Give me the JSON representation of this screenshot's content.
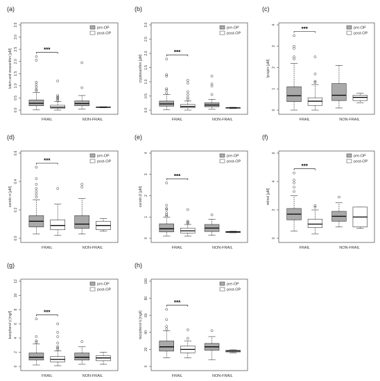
{
  "legend": {
    "pre_label": "pre-OP",
    "post_label": "post-OP"
  },
  "colors": {
    "pre_fill": "#a9a9a9",
    "post_fill": "#ffffff",
    "stroke": "#333333"
  },
  "chart_data": [
    {
      "panel": "(a)",
      "type": "boxplot",
      "ylabel": "lutein and zeaxanthin [µM]",
      "ylim": [
        0,
        3.5
      ],
      "yticks": [
        "0.0",
        "0.5",
        "1.0",
        "1.5",
        "2.0",
        "2.5",
        "3.0",
        "3.5"
      ],
      "categories": [
        "FRAIL",
        "NON-FRAIL"
      ],
      "significance": "***",
      "series": [
        {
          "name": "pre-OP",
          "boxes": [
            {
              "whisker_low": 0.02,
              "q1": 0.18,
              "median": 0.28,
              "q3": 0.42,
              "whisker_high": 0.72,
              "outliers": [
                0.8,
                0.85,
                0.95,
                1.05,
                1.15,
                2.05,
                2.2
              ]
            },
            {
              "whisker_low": 0.05,
              "q1": 0.18,
              "median": 0.27,
              "q3": 0.38,
              "whisker_high": 0.6,
              "outliers": [
                0.92,
                1.95
              ]
            }
          ]
        },
        {
          "name": "post-OP",
          "boxes": [
            {
              "whisker_low": 0.0,
              "q1": 0.08,
              "median": 0.12,
              "q3": 0.2,
              "whisker_high": 0.35,
              "outliers": [
                0.4,
                0.45,
                0.5,
                0.55,
                0.6,
                1.2
              ]
            },
            {
              "whisker_low": 0.1,
              "q1": 0.11,
              "median": 0.12,
              "q3": 0.13,
              "whisker_high": 0.14,
              "outliers": []
            }
          ]
        }
      ]
    },
    {
      "panel": "(b)",
      "type": "boxplot",
      "ylabel": "cryptoxanthin [µM]",
      "ylim": [
        0,
        3.0
      ],
      "yticks": [
        "0.0",
        "0.5",
        "1.0",
        "1.5",
        "2.0",
        "2.5",
        "3.0"
      ],
      "categories": [
        "FRAIL",
        "NON-FRAIL"
      ],
      "significance": "***",
      "series": [
        {
          "name": "pre-OP",
          "boxes": [
            {
              "whisker_low": 0.02,
              "q1": 0.14,
              "median": 0.22,
              "q3": 0.32,
              "whisker_high": 0.55,
              "outliers": [
                0.6,
                0.7,
                0.75,
                1.2,
                1.25,
                1.8
              ]
            },
            {
              "whisker_low": 0.03,
              "q1": 0.12,
              "median": 0.18,
              "q3": 0.26,
              "whisker_high": 0.38,
              "outliers": [
                0.55,
                0.85,
                0.92,
                1.2
              ]
            }
          ]
        },
        {
          "name": "post-OP",
          "boxes": [
            {
              "whisker_low": 0.0,
              "q1": 0.08,
              "median": 0.13,
              "q3": 0.2,
              "whisker_high": 0.32,
              "outliers": [
                0.38,
                0.45,
                0.55,
                0.65,
                0.95,
                1.05
              ]
            },
            {
              "whisker_low": 0.06,
              "q1": 0.07,
              "median": 0.08,
              "q3": 0.09,
              "whisker_high": 0.1,
              "outliers": []
            }
          ]
        }
      ]
    },
    {
      "panel": "(c)",
      "type": "boxplot",
      "ylabel": "lycopin [µM]",
      "ylim": [
        0,
        4
      ],
      "yticks": [
        "0",
        "1",
        "2",
        "3",
        "4"
      ],
      "categories": [
        "FRAIL",
        "NON-FRAIL"
      ],
      "significance": "***",
      "series": [
        {
          "name": "pre-OP",
          "boxes": [
            {
              "whisker_low": 0.0,
              "q1": 0.4,
              "median": 0.68,
              "q3": 1.1,
              "whisker_high": 2.2,
              "outliers": [
                2.4,
                2.5,
                2.9,
                3.0,
                3.5
              ]
            },
            {
              "whisker_low": 0.1,
              "q1": 0.45,
              "median": 0.7,
              "q3": 1.25,
              "whisker_high": 2.1,
              "outliers": []
            }
          ]
        },
        {
          "name": "post-OP",
          "boxes": [
            {
              "whisker_low": 0.0,
              "q1": 0.22,
              "median": 0.42,
              "q3": 0.58,
              "whisker_high": 1.2,
              "outliers": [
                1.3,
                1.35,
                1.7,
                2.5
              ]
            },
            {
              "whisker_low": 0.35,
              "q1": 0.45,
              "median": 0.6,
              "q3": 0.7,
              "whisker_high": 0.8,
              "outliers": []
            }
          ]
        }
      ]
    },
    {
      "panel": "(d)",
      "type": "boxplot",
      "ylabel": "carotin α [µM]",
      "ylim": [
        0,
        0.6
      ],
      "yticks": [
        "0.0",
        "0.2",
        "0.4",
        "0.6"
      ],
      "categories": [
        "FRAIL",
        "NON-FRAIL"
      ],
      "significance": "***",
      "series": [
        {
          "name": "pre-OP",
          "boxes": [
            {
              "whisker_low": 0.03,
              "q1": 0.08,
              "median": 0.12,
              "q3": 0.16,
              "whisker_high": 0.27,
              "outliers": [
                0.29,
                0.31,
                0.33,
                0.35,
                0.38,
                0.42,
                0.5
              ]
            },
            {
              "whisker_low": 0.03,
              "q1": 0.07,
              "median": 0.1,
              "q3": 0.16,
              "whisker_high": 0.28,
              "outliers": [
                0.36,
                0.38
              ]
            }
          ]
        },
        {
          "name": "post-OP",
          "boxes": [
            {
              "whisker_low": 0.02,
              "q1": 0.06,
              "median": 0.09,
              "q3": 0.13,
              "whisker_high": 0.24,
              "outliers": [
                0.35
              ]
            },
            {
              "whisker_low": 0.05,
              "q1": 0.06,
              "median": 0.09,
              "q3": 0.12,
              "whisker_high": 0.14,
              "outliers": []
            }
          ]
        }
      ]
    },
    {
      "panel": "(e)",
      "type": "boxplot",
      "ylabel": "carotin β [µM]",
      "ylim": [
        0,
        4
      ],
      "yticks": [
        "0",
        "1",
        "2",
        "3",
        "4"
      ],
      "categories": [
        "FRAIL",
        "NON-FRAIL"
      ],
      "significance": "***",
      "series": [
        {
          "name": "pre-OP",
          "boxes": [
            {
              "whisker_low": 0.1,
              "q1": 0.3,
              "median": 0.45,
              "q3": 0.68,
              "whisker_high": 1.0,
              "outliers": [
                1.05,
                1.1,
                1.2,
                1.35,
                1.4,
                1.55,
                2.6
              ]
            },
            {
              "whisker_low": 0.15,
              "q1": 0.32,
              "median": 0.48,
              "q3": 0.65,
              "whisker_high": 0.9,
              "outliers": [
                1.1
              ]
            }
          ]
        },
        {
          "name": "post-OP",
          "boxes": [
            {
              "whisker_low": 0.1,
              "q1": 0.25,
              "median": 0.35,
              "q3": 0.48,
              "whisker_high": 0.65,
              "outliers": [
                0.7,
                0.75,
                0.8,
                1.35
              ]
            },
            {
              "whisker_low": 0.26,
              "q1": 0.27,
              "median": 0.3,
              "q3": 0.32,
              "whisker_high": 0.33,
              "outliers": []
            }
          ]
        }
      ]
    },
    {
      "panel": "(f)",
      "type": "boxplot",
      "ylabel": "retinol [µM]",
      "ylim": [
        0,
        6
      ],
      "yticks": [
        "0",
        "2",
        "4",
        "6"
      ],
      "categories": [
        "FRAIL",
        "NON-FRAIL"
      ],
      "significance": "***",
      "series": [
        {
          "name": "pre-OP",
          "boxes": [
            {
              "whisker_low": 0.5,
              "q1": 1.3,
              "median": 1.7,
              "q3": 2.1,
              "whisker_high": 3.0,
              "outliers": [
                3.3,
                3.6,
                3.9,
                4.1,
                4.6
              ]
            },
            {
              "whisker_low": 0.8,
              "q1": 1.2,
              "median": 1.55,
              "q3": 1.9,
              "whisker_high": 2.5,
              "outliers": [
                2.9
              ]
            }
          ]
        },
        {
          "name": "post-OP",
          "boxes": [
            {
              "whisker_low": 0.3,
              "q1": 0.75,
              "median": 1.0,
              "q3": 1.35,
              "whisker_high": 2.0,
              "outliers": [
                2.2,
                2.3
              ]
            },
            {
              "whisker_low": 0.7,
              "q1": 0.8,
              "median": 1.5,
              "q3": 2.2,
              "whisker_high": 2.2,
              "outliers": []
            }
          ]
        }
      ]
    },
    {
      "panel": "(g)",
      "type": "boxplot",
      "ylabel": "tocopherol γ [mg/l]",
      "ylim": [
        0,
        12
      ],
      "yticks": [
        "0",
        "2",
        "4",
        "6",
        "8",
        "10",
        "12"
      ],
      "categories": [
        "FRAIL",
        "NON-FRAIL"
      ],
      "significance": "***",
      "series": [
        {
          "name": "pre-OP",
          "boxes": [
            {
              "whisker_low": 0.2,
              "q1": 0.9,
              "median": 1.3,
              "q3": 1.9,
              "whisker_high": 3.2,
              "outliers": [
                3.4,
                3.6,
                4.2,
                6.7
              ]
            },
            {
              "whisker_low": 0.3,
              "q1": 0.9,
              "median": 1.3,
              "q3": 1.9,
              "whisker_high": 2.8,
              "outliers": [
                3.5
              ]
            }
          ]
        },
        {
          "name": "post-OP",
          "boxes": [
            {
              "whisker_low": 0.1,
              "q1": 0.65,
              "median": 1.0,
              "q3": 1.4,
              "whisker_high": 2.2,
              "outliers": [
                2.4,
                2.6,
                2.8,
                3.3,
                4.2,
                4.8,
                6.0
              ]
            },
            {
              "whisker_low": 0.3,
              "q1": 0.8,
              "median": 1.2,
              "q3": 1.5,
              "whisker_high": 2.0,
              "outliers": []
            }
          ]
        }
      ]
    },
    {
      "panel": "(h)",
      "type": "boxplot",
      "ylabel": "tocopherol α [mg/l]",
      "ylim": [
        0,
        100
      ],
      "yticks": [
        "0",
        "20",
        "40",
        "60",
        "80",
        "100"
      ],
      "categories": [
        "FRAIL",
        "NON-FRAIL"
      ],
      "significance": "***",
      "series": [
        {
          "name": "pre-OP",
          "boxes": [
            {
              "whisker_low": 10,
              "q1": 18,
              "median": 23,
              "q3": 30,
              "whisker_high": 42,
              "outliers": [
                44,
                47,
                55,
                67
              ]
            },
            {
              "whisker_low": 8,
              "q1": 19,
              "median": 23,
              "q3": 27,
              "whisker_high": 35,
              "outliers": [
                42
              ]
            }
          ]
        },
        {
          "name": "post-OP",
          "boxes": [
            {
              "whisker_low": 10,
              "q1": 16,
              "median": 20,
              "q3": 24,
              "whisker_high": 30,
              "outliers": [
                33,
                43
              ]
            },
            {
              "whisker_low": 16,
              "q1": 17,
              "median": 18,
              "q3": 19,
              "whisker_high": 19.5,
              "outliers": []
            }
          ]
        }
      ]
    }
  ]
}
